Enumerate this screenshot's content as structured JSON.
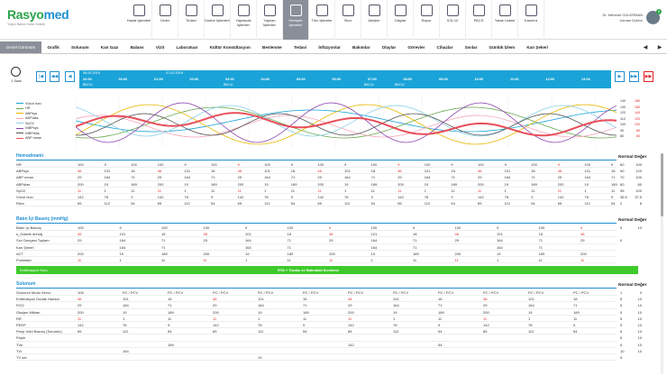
{
  "app": {
    "logo_main": "Rasyo",
    "logo_accent": "med",
    "logo_sub": "Yoğun Bakım Karar Destek"
  },
  "toolbar": [
    {
      "label": "Hasta İşlemleri",
      "icon": "stethoscope-icon"
    },
    {
      "label": "Order",
      "icon": "folder-icon"
    },
    {
      "label": "Tedavi",
      "icon": "pen-icon"
    },
    {
      "label": "Doktor İşlemleri",
      "icon": "doctor-icon"
    },
    {
      "label": "Yapılacak İşlemler",
      "icon": "checklist-icon"
    },
    {
      "label": "Yapılan İşlemler",
      "icon": "done-list-icon"
    },
    {
      "label": "Hemşire İşlemleri",
      "icon": "nurse-icon",
      "active": true
    },
    {
      "label": "Tüm İşlemler",
      "icon": "list-icon"
    },
    {
      "label": "Skor",
      "icon": "score-icon"
    },
    {
      "label": "Alerjiler",
      "icon": "allergy-icon"
    },
    {
      "label": "Olaylar",
      "icon": "events-icon"
    },
    {
      "label": "Rapor",
      "icon": "report-icon"
    },
    {
      "label": "ICD-10",
      "icon": "thermometer-icon"
    },
    {
      "label": "PACS",
      "icon": "pacs-icon"
    },
    {
      "label": "Yatak Listesi",
      "icon": "bed-icon"
    },
    {
      "label": "Kamera",
      "icon": "camera-icon"
    }
  ],
  "user": {
    "name": "Dr. Mehmet GÜLERMAN",
    "role": "Uzman Doktor",
    "badge": "5"
  },
  "tabs": [
    "Genel Görünüm",
    "Grafik",
    "Solunum",
    "Kan Gazı",
    "Balans",
    "Vizit",
    "Laboratuar",
    "Kültür Konsültasyon",
    "Beslenme",
    "Tedavi",
    "İnfüzyonlar",
    "Bakımlar",
    "Olaylar",
    "Görevler",
    "Cihazlar",
    "Sıvılar",
    "Günlük İzlem",
    "Kan Şekeri"
  ],
  "timeline": {
    "interval": "1 Saat",
    "dates": [
      "06.02.2019",
      "07.02.2019"
    ],
    "times": [
      "22:00",
      "00:00",
      "01:00",
      "02:00",
      "03:00",
      "04:00",
      "05:00",
      "06:00",
      "07:00",
      "08:00",
      "09:00",
      "10:00",
      "11:00",
      "12:00",
      "13:00"
    ],
    "tags": [
      "BKCU",
      "BKCU",
      "BKCU",
      "BKCU"
    ]
  },
  "chart_data": {
    "type": "line",
    "series": [
      {
        "name": "Vücut Isısı",
        "color": "#1aa3d8"
      },
      {
        "name": "HR",
        "color": "#6aa84f"
      },
      {
        "name": "ABPsys",
        "color": "#e6b800"
      },
      {
        "name": "ABPdias",
        "color": "#f4a6b8"
      },
      {
        "name": "SpO2",
        "color": "#8ad0e8"
      },
      {
        "name": "NIBPsys",
        "color": "#8e44ad"
      },
      {
        "name": "NIBPdias",
        "color": "#555555"
      },
      {
        "name": "ABP mean",
        "color": "#e84f5a"
      }
    ],
    "right_scale": [
      [
        "140",
        "180"
      ],
      [
        "130",
        "160"
      ],
      [
        "120",
        "140"
      ],
      [
        "110",
        "120"
      ],
      [
        "100",
        "100"
      ],
      [
        "90",
        "80"
      ],
      [
        "80",
        "60"
      ]
    ]
  },
  "hemodinami": {
    "title": "Hemodinami",
    "normal_label": "Normal Değer",
    "rows": [
      {
        "name": "HR",
        "vals": [
          "100",
          "9",
          "100",
          "100",
          "9",
          "100",
          "9",
          "100",
          "9",
          "100",
          "9",
          "100",
          "9",
          "100",
          "9",
          "100",
          "9",
          "100",
          "9",
          "100",
          "9"
        ],
        "normal": [
          "60",
          "100"
        ]
      },
      {
        "name": "ABPsys",
        "vals": [
          "46",
          "101",
          "18",
          "46",
          "101",
          "18",
          "46",
          "101",
          "18",
          "46",
          "101",
          "18",
          "46",
          "101",
          "18",
          "46",
          "101",
          "18",
          "46",
          "101",
          "18"
        ],
        "normal": [
          "90",
          "120"
        ]
      },
      {
        "name": "ABP mean",
        "vals": [
          "29",
          "164",
          "71",
          "29",
          "164",
          "71",
          "29",
          "164",
          "71",
          "29",
          "164",
          "71",
          "29",
          "164",
          "71",
          "29",
          "164",
          "71",
          "29",
          "164",
          "71"
        ],
        "normal": [
          "70",
          "100"
        ]
      },
      {
        "name": "ABPdias",
        "vals": [
          "200",
          "19",
          "189",
          "200",
          "19",
          "189",
          "200",
          "19",
          "189",
          "200",
          "19",
          "189",
          "200",
          "19",
          "189",
          "200",
          "19",
          "189",
          "200",
          "19",
          "189"
        ],
        "normal": [
          "60",
          "80"
        ]
      },
      {
        "name": "SpO2",
        "vals": [
          "11",
          "1",
          "11",
          "11",
          "1",
          "11",
          "11",
          "1",
          "11",
          "11",
          "1",
          "11",
          "11",
          "1",
          "11",
          "11",
          "1",
          "11",
          "11",
          "1",
          "11"
        ],
        "normal": [
          "95",
          "100"
        ]
      },
      {
        "name": "Vücut Isısı",
        "vals": [
          "142",
          "78",
          "9",
          "142",
          "78",
          "9",
          "142",
          "78",
          "9",
          "142",
          "78",
          "9",
          "142",
          "78",
          "9",
          "142",
          "78",
          "9",
          "142",
          "78",
          "9"
        ],
        "normal": [
          "36.5",
          "37.5"
        ]
      },
      {
        "name": "RAm",
        "vals": [
          "65",
          "112",
          "54",
          "65",
          "112",
          "54",
          "65",
          "112",
          "54",
          "65",
          "112",
          "54",
          "65",
          "112",
          "54",
          "65",
          "112",
          "54",
          "65",
          "112",
          "54"
        ],
        "normal": [
          "2",
          "8"
        ]
      }
    ]
  },
  "batin": {
    "title": "Batın İçi Basınç (mmHg)",
    "normal_label": "Normal Değer",
    "rows": [
      {
        "name": "Batın İçi Basınç",
        "vals": [
          "100",
          "9",
          "100",
          "100",
          "9",
          "100",
          "9",
          "100",
          "9",
          "100",
          "9",
          "100",
          "9"
        ],
        "normal": [
          "5",
          "10"
        ]
      },
      {
        "name": "s_Gastrik drenaj",
        "vals": [
          "46",
          "101",
          "18",
          "46",
          "101",
          "18",
          "46",
          "101",
          "18",
          "46",
          "101",
          "18",
          "46"
        ],
        "normal": []
      },
      {
        "name": "Sıvı Dengesi Toplam",
        "vals": [
          "29",
          "164",
          "71",
          "29",
          "164",
          "71",
          "29",
          "164",
          "71",
          "29",
          "164",
          "71",
          "29"
        ],
        "normal": [
          "0",
          ""
        ]
      },
      {
        "name": "Kan Şekeri",
        "vals": [
          "",
          "164",
          "71",
          "",
          "164",
          "71",
          "",
          "164",
          "71",
          "",
          "164",
          "71",
          ""
        ],
        "normal": []
      },
      {
        "name": "ACT",
        "vals": [
          "200",
          "19",
          "189",
          "200",
          "19",
          "189",
          "200",
          "19",
          "189",
          "200",
          "19",
          "189",
          "200"
        ],
        "normal": []
      },
      {
        "name": "Punktaler",
        "vals": [
          "11",
          "1",
          "11",
          "11",
          "1",
          "11",
          "11",
          "1",
          "11",
          "11",
          "1",
          "11",
          "11"
        ],
        "normal": []
      }
    ],
    "event_left": "Entübasyon Notu",
    "event_center": "RTA + Toraks ve Batındaki İnceleme"
  },
  "solunum": {
    "title": "Solunum",
    "normal_label": "Normal Değer",
    "rows": [
      {
        "name": "Solunum Modu Servo",
        "vals": [
          "108",
          "PC / PCV",
          "PC / PCV",
          "PC / PCV",
          "PC / PCV",
          "PC / PCV",
          "PC / PCV",
          "PC / PCV",
          "PC / PCV",
          "PC / PCV",
          "PC / PCV",
          "PC / PCV"
        ],
        "normal": [
          "1",
          "0"
        ]
      },
      {
        "name": "Entübasyon Dudak Hanam",
        "vals": [
          "46",
          "101",
          "18",
          "46",
          "101",
          "18",
          "46",
          "101",
          "18",
          "46",
          "101",
          "18"
        ],
        "normal": [
          "5",
          "10"
        ]
      },
      {
        "name": "FiO2",
        "vals": [
          "29",
          "164",
          "71",
          "29",
          "164",
          "71",
          "29",
          "164",
          "71",
          "29",
          "164",
          "71"
        ],
        "normal": [
          "5",
          "10"
        ]
      },
      {
        "name": "Oksijen Miktarı",
        "vals": [
          "200",
          "19",
          "189",
          "200",
          "19",
          "189",
          "200",
          "19",
          "189",
          "200",
          "19",
          "189"
        ],
        "normal": [
          "5",
          "10"
        ]
      },
      {
        "name": "RR",
        "vals": [
          "11",
          "1",
          "11",
          "11",
          "1",
          "11",
          "11",
          "1",
          "11",
          "11",
          "1",
          "11"
        ],
        "normal": [
          "5",
          "10"
        ]
      },
      {
        "name": "PEEP",
        "vals": [
          "142",
          "78",
          "9",
          "142",
          "78",
          "9",
          "142",
          "78",
          "9",
          "142",
          "78",
          "9"
        ],
        "normal": [
          "5",
          "10"
        ]
      },
      {
        "name": "Peep Üstü Basınç (Sorumlu)",
        "vals": [
          "65",
          "112",
          "54",
          "65",
          "112",
          "54",
          "65",
          "112",
          "54",
          "65",
          "112",
          "54"
        ],
        "normal": [
          "5",
          "10"
        ]
      },
      {
        "name": "Pepie",
        "vals": [
          "",
          "",
          "",
          "",
          "",
          "",
          "",
          "",
          "",
          "",
          "",
          ""
        ],
        "normal": [
          "5",
          "10"
        ]
      },
      {
        "name": "TVe",
        "vals": [
          "",
          "",
          "189",
          "",
          "",
          "",
          "142",
          "",
          "54",
          "",
          "",
          ""
        ],
        "normal": [
          "5",
          "10"
        ]
      },
      {
        "name": "TVi",
        "vals": [
          "",
          "164",
          "",
          "",
          "",
          "",
          "",
          "",
          "",
          "",
          "",
          ""
        ],
        "normal": [
          "10",
          "10"
        ]
      },
      {
        "name": "TV set",
        "vals": [
          "",
          "",
          "",
          "",
          "19",
          "",
          "",
          "",
          "",
          "",
          "",
          ""
        ],
        "normal": [
          "5",
          ""
        ]
      }
    ]
  }
}
